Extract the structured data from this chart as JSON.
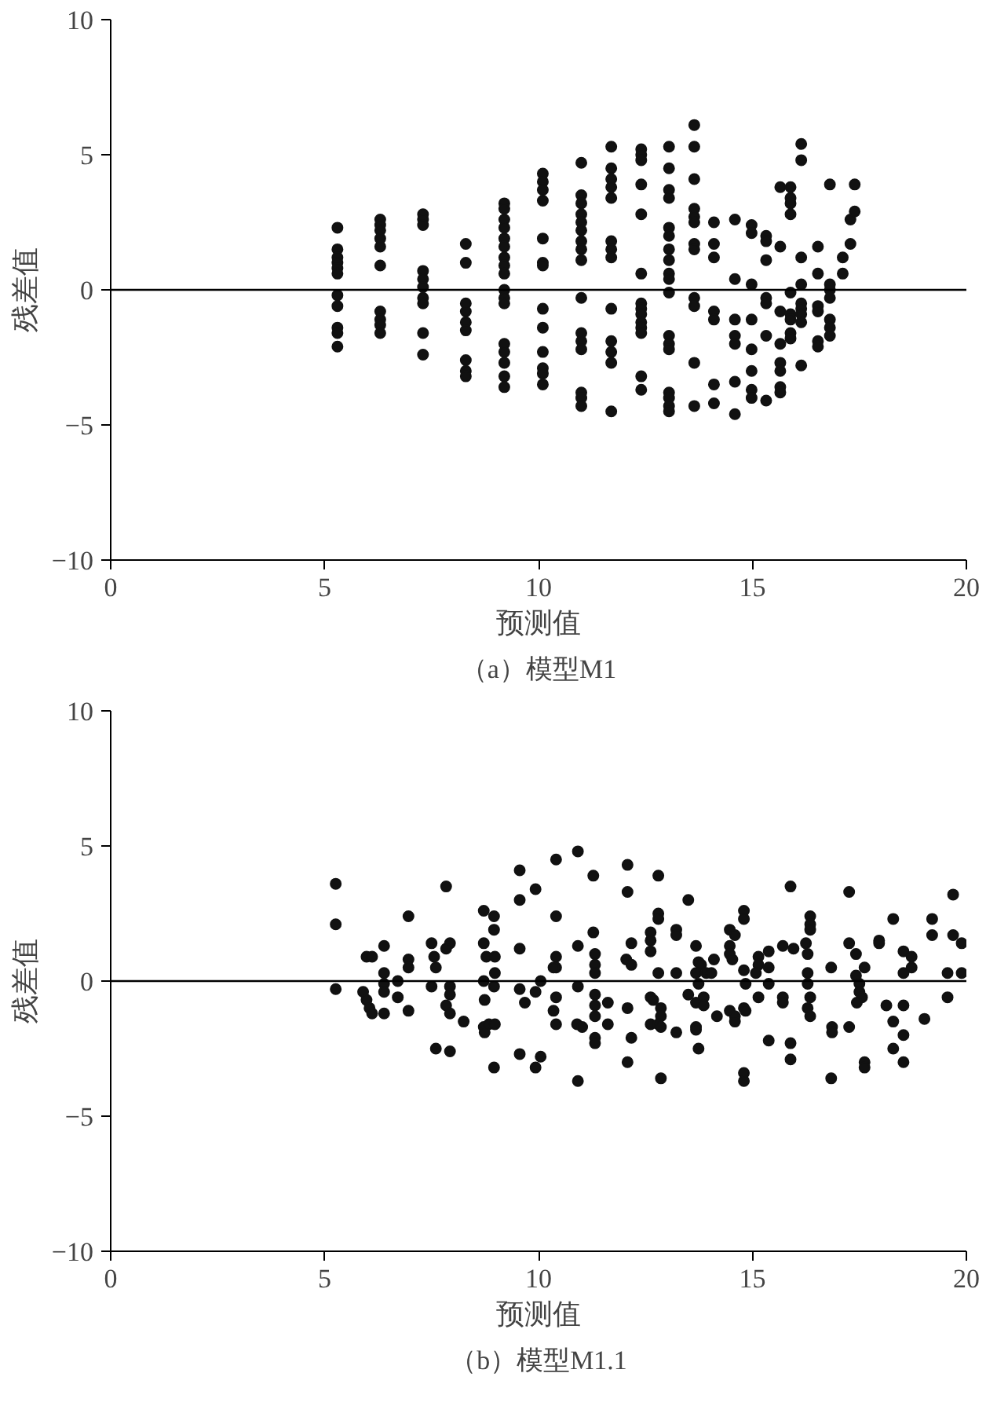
{
  "chart_data": [
    {
      "type": "scatter",
      "title": "（a）模型M1",
      "xlabel": "预测值",
      "ylabel": "残差值",
      "xlim": [
        0,
        20
      ],
      "ylim": [
        -10,
        10
      ],
      "xticks": [
        0,
        5,
        10,
        15,
        20
      ],
      "yticks": [
        -10,
        -5,
        0,
        5,
        10
      ],
      "grid": false,
      "marker": "circle",
      "ref_lines": [
        {
          "axis": "y",
          "value": 0,
          "color": "#000000"
        }
      ],
      "series": [
        {
          "color": "#111111",
          "x": [
            5.3,
            5.3,
            5.3,
            5.3,
            5.3,
            5.3,
            5.3,
            5.3,
            5.3,
            5.3,
            5.3,
            6.3,
            6.3,
            6.3,
            6.3,
            6.3,
            6.3,
            6.3,
            6.3,
            6.3,
            6.3,
            7.3,
            7.3,
            7.3,
            7.3,
            7.3,
            7.3,
            7.3,
            7.3,
            7.3,
            7.3,
            8.3,
            8.3,
            8.3,
            8.3,
            8.3,
            8.3,
            8.3,
            8.3,
            8.3,
            9.2,
            9.2,
            9.2,
            9.2,
            9.2,
            9.2,
            9.2,
            9.2,
            9.2,
            9.2,
            9.2,
            9.2,
            9.2,
            9.2,
            9.2,
            9.2,
            9.2,
            10.1,
            10.1,
            10.1,
            10.1,
            10.1,
            10.1,
            10.1,
            10.1,
            10.1,
            10.1,
            10.1,
            10.1,
            10.1,
            11.0,
            11.0,
            11.0,
            11.0,
            11.0,
            11.0,
            11.0,
            11.0,
            11.0,
            11.0,
            11.0,
            11.0,
            11.0,
            11.0,
            11.0,
            11.0,
            11.7,
            11.7,
            11.7,
            11.7,
            11.7,
            11.7,
            11.7,
            11.7,
            11.7,
            11.7,
            11.7,
            11.7,
            11.7,
            12.4,
            12.4,
            12.4,
            12.4,
            12.4,
            12.4,
            12.4,
            12.4,
            12.4,
            12.4,
            12.4,
            12.4,
            12.4,
            12.4,
            13.05,
            13.05,
            13.05,
            13.05,
            13.05,
            13.05,
            13.05,
            13.05,
            13.05,
            13.05,
            13.05,
            13.05,
            13.05,
            13.05,
            13.05,
            13.05,
            13.05,
            13.05,
            13.64,
            13.64,
            13.64,
            13.64,
            13.64,
            13.64,
            13.64,
            13.64,
            13.64,
            13.64,
            13.64,
            13.64,
            14.1,
            14.1,
            14.1,
            14.1,
            14.1,
            14.1,
            14.1,
            14.59,
            14.59,
            14.59,
            14.59,
            14.59,
            14.59,
            14.59,
            14.98,
            14.98,
            14.98,
            14.98,
            14.98,
            14.98,
            14.98,
            14.98,
            15.32,
            15.32,
            15.32,
            15.32,
            15.32,
            15.32,
            15.32,
            15.65,
            15.65,
            15.65,
            15.65,
            15.65,
            15.65,
            15.65,
            15.65,
            15.89,
            15.89,
            15.89,
            15.89,
            15.89,
            15.89,
            15.89,
            15.89,
            15.89,
            16.14,
            16.14,
            16.14,
            16.14,
            16.14,
            16.14,
            16.14,
            16.14,
            16.14,
            16.53,
            16.53,
            16.53,
            16.53,
            16.53,
            16.53,
            16.81,
            16.81,
            16.81,
            16.81,
            16.81,
            16.81,
            16.81,
            17.11,
            17.11,
            17.29,
            17.29,
            17.39,
            17.39
          ],
          "values": [
            2.3,
            1.5,
            1.2,
            1.0,
            0.8,
            0.6,
            -0.2,
            -0.6,
            -1.4,
            -1.6,
            -2.1,
            2.6,
            2.4,
            2.2,
            1.9,
            1.6,
            0.9,
            -0.8,
            -1.1,
            -1.3,
            -1.6,
            2.8,
            2.6,
            2.4,
            0.7,
            0.4,
            0.1,
            -0.3,
            -0.5,
            -1.6,
            -2.4,
            1.7,
            1.0,
            -0.5,
            -0.8,
            -1.2,
            -1.5,
            -2.6,
            -3.0,
            -3.2,
            3.2,
            3.0,
            2.6,
            2.3,
            1.9,
            1.6,
            1.2,
            0.9,
            0.6,
            0,
            -0.3,
            -0.5,
            -2.0,
            -2.3,
            -2.7,
            -3.2,
            -3.6,
            4.3,
            4.0,
            3.7,
            3.3,
            1.9,
            1.0,
            0.9,
            -0.7,
            -1.4,
            -2.3,
            -2.9,
            -3.1,
            -3.5,
            4.7,
            3.5,
            3.2,
            2.8,
            2.5,
            2.2,
            1.8,
            1.5,
            1.1,
            -0.3,
            -1.6,
            -1.9,
            -2.2,
            -3.8,
            -4.0,
            -4.3,
            5.3,
            4.5,
            4.1,
            3.8,
            3.4,
            1.8,
            1.5,
            1.2,
            -0.7,
            -1.9,
            -2.3,
            -2.7,
            -4.5,
            5.2,
            5.0,
            4.8,
            3.9,
            2.8,
            0.6,
            -0.5,
            -0.7,
            -0.9,
            -1.2,
            -1.4,
            -1.6,
            -3.2,
            -3.7,
            5.3,
            4.5,
            3.7,
            3.4,
            2.3,
            2.0,
            1.5,
            1.1,
            0.6,
            0.4,
            -0.1,
            -1.7,
            -2.0,
            -2.2,
            -3.8,
            -4.0,
            -4.3,
            -4.5,
            6.1,
            5.3,
            4.1,
            3.0,
            2.7,
            2.5,
            1.7,
            1.5,
            -0.3,
            -0.6,
            -2.7,
            -4.3,
            2.5,
            1.7,
            1.2,
            -0.8,
            -1.1,
            -3.5,
            -4.2,
            2.6,
            0.4,
            -1.1,
            -1.7,
            -2.0,
            -3.4,
            -4.6,
            2.4,
            2.1,
            0.2,
            -1.1,
            -2.2,
            -3.0,
            -3.7,
            -4.0,
            2.0,
            1.8,
            1.1,
            -0.3,
            -0.5,
            -1.7,
            -4.1,
            3.8,
            1.6,
            -0.8,
            -2.0,
            -2.7,
            -3.0,
            -3.6,
            -3.8,
            3.8,
            3.4,
            3.2,
            2.8,
            -0.1,
            -0.9,
            -1.1,
            -1.6,
            -1.8,
            5.4,
            4.8,
            1.2,
            0.2,
            -0.5,
            -0.7,
            -0.9,
            -1.2,
            -2.8,
            1.6,
            0.6,
            -0.6,
            -0.8,
            -1.9,
            -2.1,
            3.9,
            0.2,
            0,
            -0.3,
            -1.1,
            -1.4,
            -1.7,
            1.2,
            0.6,
            2.6,
            1.7,
            3.9,
            2.9
          ]
        }
      ]
    },
    {
      "type": "scatter",
      "title": "（b）模型M1.1",
      "xlabel": "预测值",
      "ylabel": "残差值",
      "xlim": [
        0,
        20
      ],
      "ylim": [
        -10,
        10
      ],
      "xticks": [
        0,
        5,
        10,
        15,
        20
      ],
      "yticks": [
        -10,
        -5,
        0,
        5,
        10
      ],
      "grid": false,
      "marker": "circle",
      "ref_lines": [
        {
          "axis": "y",
          "value": 0,
          "color": "#000000"
        }
      ],
      "series": [
        {
          "color": "#111111",
          "x": [
            5.26,
            5.26,
            5.26,
            5.98,
            6.11,
            6.39,
            5.9,
            5.98,
            6.05,
            6.11,
            6.39,
            6.39,
            6.39,
            6.39,
            6.71,
            6.71,
            6.96,
            6.96,
            6.96,
            6.96,
            7.5,
            7.56,
            7.6,
            7.84,
            7.93,
            7.84,
            7.5,
            7.93,
            7.93,
            7.84,
            7.93,
            8.25,
            7.6,
            7.93,
            8.72,
            8.96,
            8.96,
            8.72,
            8.78,
            8.98,
            8.98,
            8.72,
            8.96,
            8.74,
            8.72,
            8.84,
            8.98,
            8.74,
            8.96,
            9.56,
            9.93,
            9.56,
            10.41,
            10.41,
            9.56,
            9.56,
            9.68,
            9.93,
            10.05,
            10.41,
            10.41,
            10.35,
            10.41,
            10.35,
            10.41,
            9.56,
            10.05,
            9.93,
            10.92,
            11.28,
            11.28,
            10.92,
            11.32,
            11.32,
            11.32,
            10.92,
            11.32,
            11.32,
            11.62,
            11.32,
            10.9,
            11.02,
            11.62,
            11.32,
            11.32,
            10.92,
            12.08,
            12.08,
            12.17,
            12.05,
            12.17,
            12.08,
            12.17,
            12.08,
            12.8,
            12.8,
            12.8,
            12.62,
            12.62,
            12.62,
            12.8,
            12.62,
            12.68,
            12.86,
            12.86,
            12.62,
            12.8,
            12.86,
            12.86,
            13.22,
            13.22,
            13.22,
            13.22,
            13.5,
            13.5,
            13.68,
            13.74,
            13.8,
            13.68,
            13.74,
            13.92,
            14.04,
            14.1,
            13.68,
            13.86,
            13.86,
            13.68,
            13.68,
            13.74,
            14.17,
            14.47,
            14.59,
            14.47,
            14.47,
            14.53,
            14.8,
            14.8,
            14.8,
            14.84,
            14.47,
            14.59,
            14.59,
            14.8,
            14.84,
            14.8,
            14.8,
            15.14,
            15.14,
            15.38,
            15.38,
            15.08,
            15.38,
            15.14,
            15.38,
            15.71,
            15.71,
            15.71,
            15.89,
            15.96,
            15.89,
            15.89,
            16.25,
            16.29,
            16.35,
            16.35,
            16.35,
            16.29,
            16.29,
            16.35,
            16.29,
            16.35,
            16.84,
            16.86,
            16.86,
            16.84,
            17.26,
            17.26,
            17.26,
            17.42,
            17.42,
            17.62,
            17.5,
            17.5,
            17.56,
            17.44,
            17.62,
            17.62,
            17.96,
            17.96,
            18.29,
            18.13,
            18.29,
            18.53,
            18.53,
            18.72,
            18.72,
            18.53,
            18.53,
            18.29,
            18.53,
            19.02,
            19.2,
            19.2,
            19.56,
            19.56,
            19.69,
            19.69,
            19.89,
            19.89
          ],
          "values": [
            3.6,
            2.1,
            -0.3,
            0.9,
            0.9,
            1.3,
            -0.4,
            -0.7,
            -1.0,
            -1.2,
            0.3,
            -0.1,
            -0.4,
            -1.2,
            0,
            -0.6,
            0.8,
            0.5,
            2.4,
            -1.1,
            1.4,
            0.9,
            0.5,
            3.5,
            1.4,
            1.2,
            -0.2,
            -0.2,
            -0.5,
            -0.9,
            -1.2,
            -1.5,
            -2.5,
            -2.6,
            2.6,
            2.4,
            1.9,
            1.4,
            0.9,
            0.9,
            0.3,
            0,
            -0.2,
            -0.7,
            -1.7,
            -1.6,
            -1.6,
            -1.9,
            -3.2,
            4.1,
            3.4,
            3.0,
            4.5,
            2.4,
            1.2,
            -0.3,
            -0.8,
            -0.4,
            0,
            0.9,
            0.5,
            0.5,
            -0.6,
            -1.1,
            -1.6,
            -2.7,
            -2.8,
            -3.2,
            4.8,
            3.9,
            1.8,
            1.3,
            1.0,
            0.6,
            0.3,
            -0.2,
            -0.5,
            -0.9,
            -0.8,
            -1.3,
            -1.6,
            -1.7,
            -1.6,
            -2.1,
            -2.3,
            -3.7,
            4.3,
            3.3,
            1.4,
            0.8,
            0.6,
            -1.0,
            -2.1,
            -3.0,
            3.9,
            2.5,
            2.3,
            1.8,
            1.5,
            1.1,
            0.3,
            -0.6,
            -0.7,
            -1.0,
            -1.3,
            -1.6,
            -1.6,
            -1.7,
            -3.6,
            1.9,
            1.7,
            0.3,
            -1.9,
            3.0,
            -0.5,
            1.3,
            0.7,
            0.6,
            0.3,
            -0.1,
            0.3,
            0.3,
            0.8,
            -0.8,
            -0.6,
            -0.9,
            -1.7,
            -1.8,
            -2.5,
            -1.3,
            1.9,
            1.7,
            1.3,
            1.0,
            0.8,
            2.6,
            2.3,
            0.4,
            -0.1,
            -1.1,
            -1.3,
            -1.5,
            -1.0,
            -1.1,
            -3.4,
            -3.7,
            0.9,
            0.6,
            1.1,
            0.5,
            0.3,
            -0.1,
            -0.6,
            -2.2,
            1.3,
            -0.6,
            -0.8,
            3.5,
            1.2,
            -2.3,
            -2.9,
            1.4,
            1.0,
            2.4,
            2.1,
            1.9,
            0.3,
            -0.1,
            -0.6,
            -1.0,
            -1.3,
            0.5,
            -1.7,
            -1.9,
            -3.6,
            3.3,
            1.4,
            -1.7,
            1.0,
            0.2,
            0.5,
            -0.1,
            -0.4,
            -0.6,
            -0.8,
            -3.0,
            -3.2,
            1.5,
            1.4,
            2.3,
            -0.9,
            -1.5,
            1.1,
            0.3,
            0.9,
            0.5,
            -0.9,
            -2.0,
            -2.5,
            -3.0,
            -1.4,
            2.3,
            1.7,
            0.3,
            -0.6,
            3.2,
            1.7,
            1.4,
            0.3
          ]
        }
      ]
    }
  ]
}
